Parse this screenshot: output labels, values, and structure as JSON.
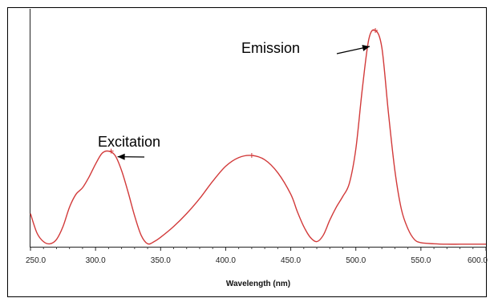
{
  "chart_data": {
    "type": "line",
    "title": "",
    "xlabel": "Wavelength (nm)",
    "ylabel": "",
    "xlim": [
      250,
      600
    ],
    "ylim": [
      0,
      1
    ],
    "x_ticks": [
      250,
      300,
      350,
      400,
      450,
      500,
      550,
      600
    ],
    "x_tick_labels": [
      "250.0",
      "300.0",
      "350.0",
      "400.0",
      "450.0",
      "500.0",
      "550.0",
      "600.0"
    ],
    "grid": false,
    "legend": "none",
    "line_color": "#d23a3a",
    "series": [
      {
        "x": [
          250,
          255,
          260,
          265,
          270,
          275,
          280,
          285,
          290,
          295,
          300,
          305,
          310,
          315,
          320,
          325,
          330,
          335,
          340,
          345,
          350,
          360,
          370,
          380,
          390,
          400,
          410,
          420,
          430,
          440,
          450,
          455,
          460,
          465,
          470,
          475,
          480,
          485,
          490,
          495,
          500,
          505,
          510,
          515,
          520,
          525,
          530,
          535,
          540,
          545,
          550,
          560,
          570,
          580,
          590,
          600
        ],
        "y": [
          0.15,
          0.06,
          0.02,
          0.01,
          0.03,
          0.09,
          0.18,
          0.24,
          0.27,
          0.32,
          0.38,
          0.43,
          0.44,
          0.42,
          0.35,
          0.25,
          0.14,
          0.05,
          0.01,
          0.02,
          0.04,
          0.09,
          0.15,
          0.22,
          0.3,
          0.37,
          0.41,
          0.42,
          0.4,
          0.34,
          0.24,
          0.16,
          0.09,
          0.04,
          0.02,
          0.05,
          0.12,
          0.18,
          0.23,
          0.29,
          0.45,
          0.73,
          0.96,
          1.0,
          0.92,
          0.62,
          0.35,
          0.17,
          0.08,
          0.03,
          0.015,
          0.01,
          0.008,
          0.008,
          0.008,
          0.008
        ]
      }
    ],
    "annotations": [
      {
        "text": "Excitation",
        "x": 312,
        "y": 0.44
      },
      {
        "text": "Emission",
        "x": 515,
        "y": 1.0
      }
    ],
    "peak_markers": [
      {
        "x": 312,
        "y": 0.44
      },
      {
        "x": 420,
        "y": 0.42
      },
      {
        "x": 515,
        "y": 1.0
      }
    ]
  }
}
